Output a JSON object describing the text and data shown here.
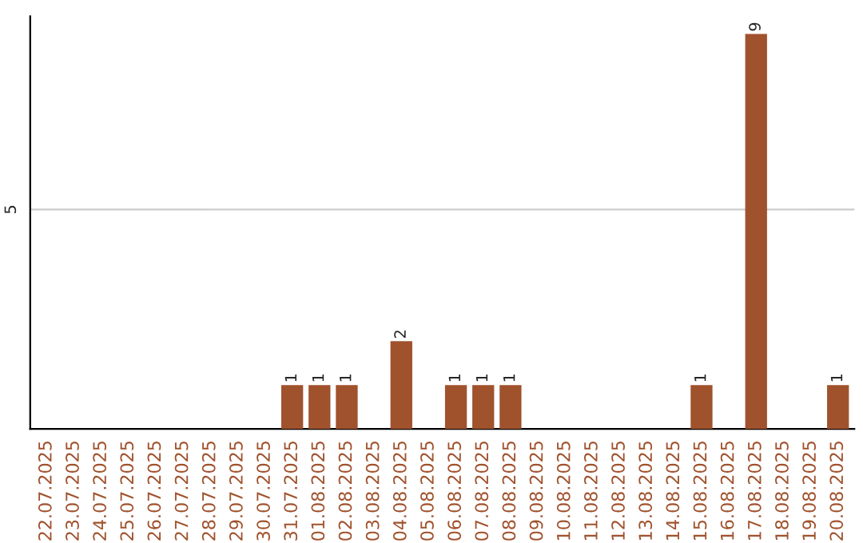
{
  "chart_data": {
    "type": "bar",
    "categories": [
      "22.07.2025",
      "23.07.2025",
      "24.07.2025",
      "25.07.2025",
      "26.07.2025",
      "27.07.2025",
      "28.07.2025",
      "29.07.2025",
      "30.07.2025",
      "31.07.2025",
      "01.08.2025",
      "02.08.2025",
      "03.08.2025",
      "04.08.2025",
      "05.08.2025",
      "06.08.2025",
      "07.08.2025",
      "08.08.2025",
      "09.08.2025",
      "10.08.2025",
      "11.08.2025",
      "12.08.2025",
      "13.08.2025",
      "14.08.2025",
      "15.08.2025",
      "16.08.2025",
      "17.08.2025",
      "18.08.2025",
      "19.08.2025",
      "20.08.2025"
    ],
    "values": [
      null,
      null,
      null,
      null,
      null,
      null,
      null,
      null,
      null,
      1,
      1,
      1,
      null,
      2,
      null,
      1,
      1,
      1,
      null,
      null,
      null,
      null,
      null,
      null,
      1,
      null,
      9,
      null,
      null,
      1
    ],
    "value_labels": [
      null,
      null,
      null,
      null,
      null,
      null,
      null,
      null,
      null,
      "1",
      "1",
      "1",
      null,
      "2",
      null,
      "1",
      "1",
      "1",
      null,
      null,
      null,
      null,
      null,
      null,
      "1",
      null,
      "9",
      null,
      null,
      "1"
    ],
    "color": "#a0522d",
    "ylim": [
      0,
      9.4
    ],
    "yticks": [
      5
    ],
    "grid": "y"
  }
}
